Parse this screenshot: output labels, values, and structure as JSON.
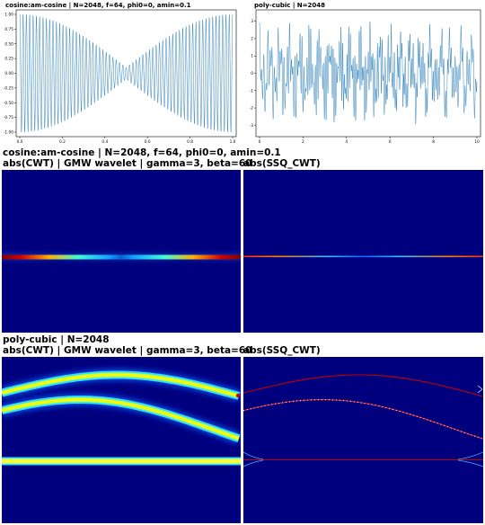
{
  "top_left": {
    "title": "cosine:am-cosine | N=2048, f=64, phi0=0, amin=0.1"
  },
  "top_right": {
    "title": "poly-cubic | N=2048"
  },
  "row1": {
    "title_line1": "cosine:am-cosine | N=2048, f=64, phi0=0, amin=0.1",
    "title_line2": "abs(CWT) | GMW wavelet | gamma=3, beta=60",
    "right_title": "abs(SSQ_CWT)"
  },
  "row2": {
    "title_line1": "poly-cubic | N=2048",
    "title_line2": "abs(CWT) | GMW wavelet | gamma=3, beta=60",
    "right_title": "abs(SSQ_CWT)"
  },
  "colors": {
    "line": "#1f77b4",
    "heat_bg": "#00007f",
    "heat_hot": "#7f0000"
  },
  "chart_data": [
    {
      "type": "line",
      "title": "cosine:am-cosine | N=2048, f=64, phi0=0, amin=0.1",
      "x_ticks": [
        "0.0",
        "0.2",
        "0.4",
        "0.6",
        "0.8",
        "1.0"
      ],
      "y_ticks": [
        "1.00",
        "0.75",
        "0.50",
        "0.25",
        "0.00",
        "-0.25",
        "-0.50",
        "-0.75",
        "-1.00"
      ],
      "xlim": [
        0,
        1
      ],
      "ylim": [
        -1,
        1
      ],
      "carrier_cycles": 64,
      "amplitude_min": 0.1
    },
    {
      "type": "line",
      "title": "poly-cubic | N=2048",
      "x_ticks": [
        "0",
        "2",
        "4",
        "6",
        "8",
        "10"
      ],
      "y_ticks": [
        "3",
        "2",
        "1",
        "0",
        "-1",
        "-2",
        "-3"
      ],
      "xlim": [
        0,
        10
      ],
      "ylim": [
        -3.5,
        3.5
      ]
    },
    {
      "type": "heatmap",
      "title": "abs(CWT) | GMW wavelet | gamma=3, beta=60",
      "signal": "cosine:am-cosine"
    },
    {
      "type": "heatmap",
      "title": "abs(SSQ_CWT)",
      "signal": "cosine:am-cosine"
    },
    {
      "type": "heatmap",
      "title": "abs(CWT) | GMW wavelet | gamma=3, beta=60",
      "signal": "poly-cubic"
    },
    {
      "type": "heatmap",
      "title": "abs(SSQ_CWT)",
      "signal": "poly-cubic"
    }
  ]
}
